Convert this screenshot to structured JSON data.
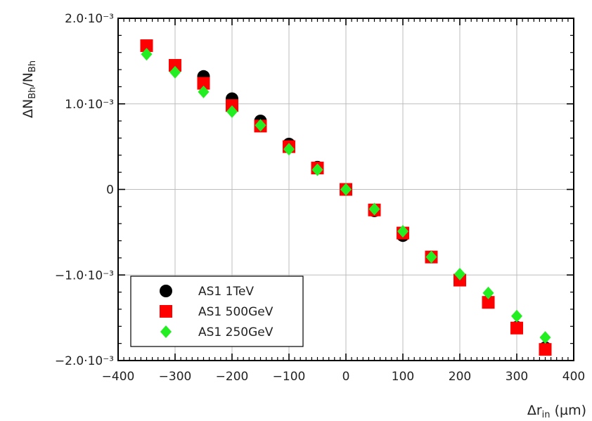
{
  "chart_data": {
    "type": "scatter",
    "xlabel_base": "Δr",
    "xlabel_sub": "in",
    "xlabel_unit": " (µm)",
    "ylabel_base1": "ΔN",
    "ylabel_sub1": "Bh",
    "ylabel_mid": "/N",
    "ylabel_sub2": "Bh",
    "xlim": [
      -400,
      400
    ],
    "ylim": [
      -0.002,
      0.002
    ],
    "xticks": [
      -400,
      -300,
      -200,
      -100,
      0,
      100,
      200,
      300,
      400
    ],
    "xtick_labels": [
      "−400",
      "−300",
      "−200",
      "−100",
      "0",
      "100",
      "200",
      "300",
      "400"
    ],
    "yticks": [
      0.002,
      0.001,
      0,
      -0.001,
      -0.002
    ],
    "ytick_labels": [
      "2.0·10⁻³",
      "1.0·10⁻³",
      "0",
      "−1.0·10⁻³",
      "−2.0·10⁻³"
    ],
    "grid": true,
    "legend_position": "bottom-left",
    "series": [
      {
        "name": "AS1 1TeV",
        "marker": "circle",
        "color": "#000000",
        "x": [
          -350,
          -300,
          -250,
          -200,
          -150,
          -100,
          -50,
          0,
          50,
          100,
          150,
          200,
          250,
          300,
          350
        ],
        "y": [
          0.00168,
          0.00145,
          0.00132,
          0.00106,
          0.0008,
          0.00053,
          0.00026,
          0.0,
          -0.00025,
          -0.00054,
          -0.00079,
          -0.00104,
          -0.00131,
          -0.00161,
          -0.00185
        ]
      },
      {
        "name": "AS1 500GeV",
        "marker": "square",
        "color": "#ff0000",
        "x": [
          -350,
          -300,
          -250,
          -200,
          -150,
          -100,
          -50,
          0,
          50,
          100,
          150,
          200,
          250,
          300,
          350
        ],
        "y": [
          0.00168,
          0.00145,
          0.00124,
          0.00098,
          0.00074,
          0.0005,
          0.00025,
          0.0,
          -0.00024,
          -0.00051,
          -0.00079,
          -0.00106,
          -0.00132,
          -0.00162,
          -0.00187
        ]
      },
      {
        "name": "AS1 250GeV",
        "marker": "diamond",
        "color": "#22ee22",
        "x": [
          -350,
          -300,
          -250,
          -200,
          -150,
          -100,
          -50,
          0,
          50,
          100,
          150,
          200,
          250,
          300,
          350
        ],
        "y": [
          0.00158,
          0.00137,
          0.00114,
          0.00091,
          0.00075,
          0.00047,
          0.00023,
          0.0,
          -0.00023,
          -0.00049,
          -0.00079,
          -0.00099,
          -0.00121,
          -0.00148,
          -0.00173
        ]
      }
    ]
  }
}
